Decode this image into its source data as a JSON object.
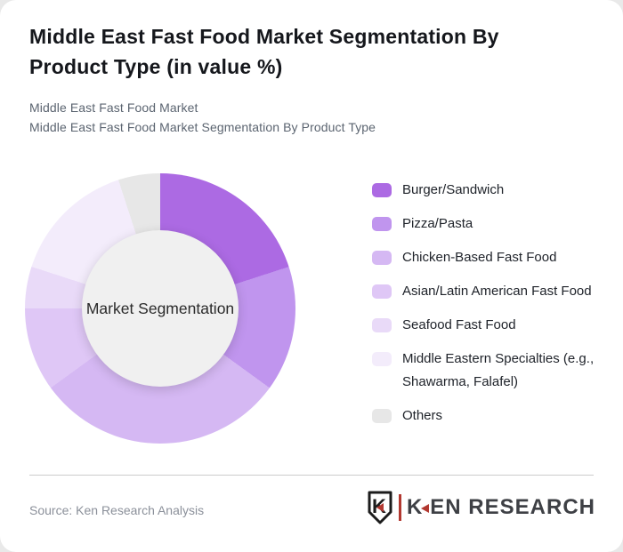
{
  "header": {
    "title": "Middle East Fast Food Market Segmentation By Product Type (in value %)",
    "subtitle_line1": "Middle East Fast Food Market",
    "subtitle_line2": "Middle East Fast Food Market Segmentation By Product Type"
  },
  "chart_data": {
    "type": "pie",
    "subtype": "donut",
    "title": "Middle East Fast Food Market Segmentation By Product Type (in value %)",
    "center_label": "Market Segmentation",
    "unit": "%",
    "values_estimated": true,
    "data_labels_shown": false,
    "start_angle_deg": 0,
    "donut_hole_ratio": 0.58,
    "hole_color": "#f0f0f0",
    "legend_position": "right",
    "categories": [
      "Burger/Sandwich",
      "Pizza/Pasta",
      "Chicken-Based Fast Food",
      "Asian/Latin American Fast Food",
      "Seafood Fast Food",
      "Middle Eastern Specialties (e.g., Shawarma, Falafel)",
      "Others"
    ],
    "values": [
      20,
      15,
      30,
      10,
      5,
      15,
      5
    ],
    "colors": [
      "#ac6ae3",
      "#c095ee",
      "#d5b8f3",
      "#dfc7f6",
      "#e9daf8",
      "#f3ecfb",
      "#e7e7e7"
    ]
  },
  "footer": {
    "source": "Source: Ken Research Analysis",
    "logo": {
      "icon": "ken-research-shield-k-icon",
      "shield_letter": "K",
      "wordmark_k": "K",
      "wordmark_rest": "EN RESEARCH",
      "accent_color": "#b23830",
      "text_color": "#3e4045"
    }
  }
}
